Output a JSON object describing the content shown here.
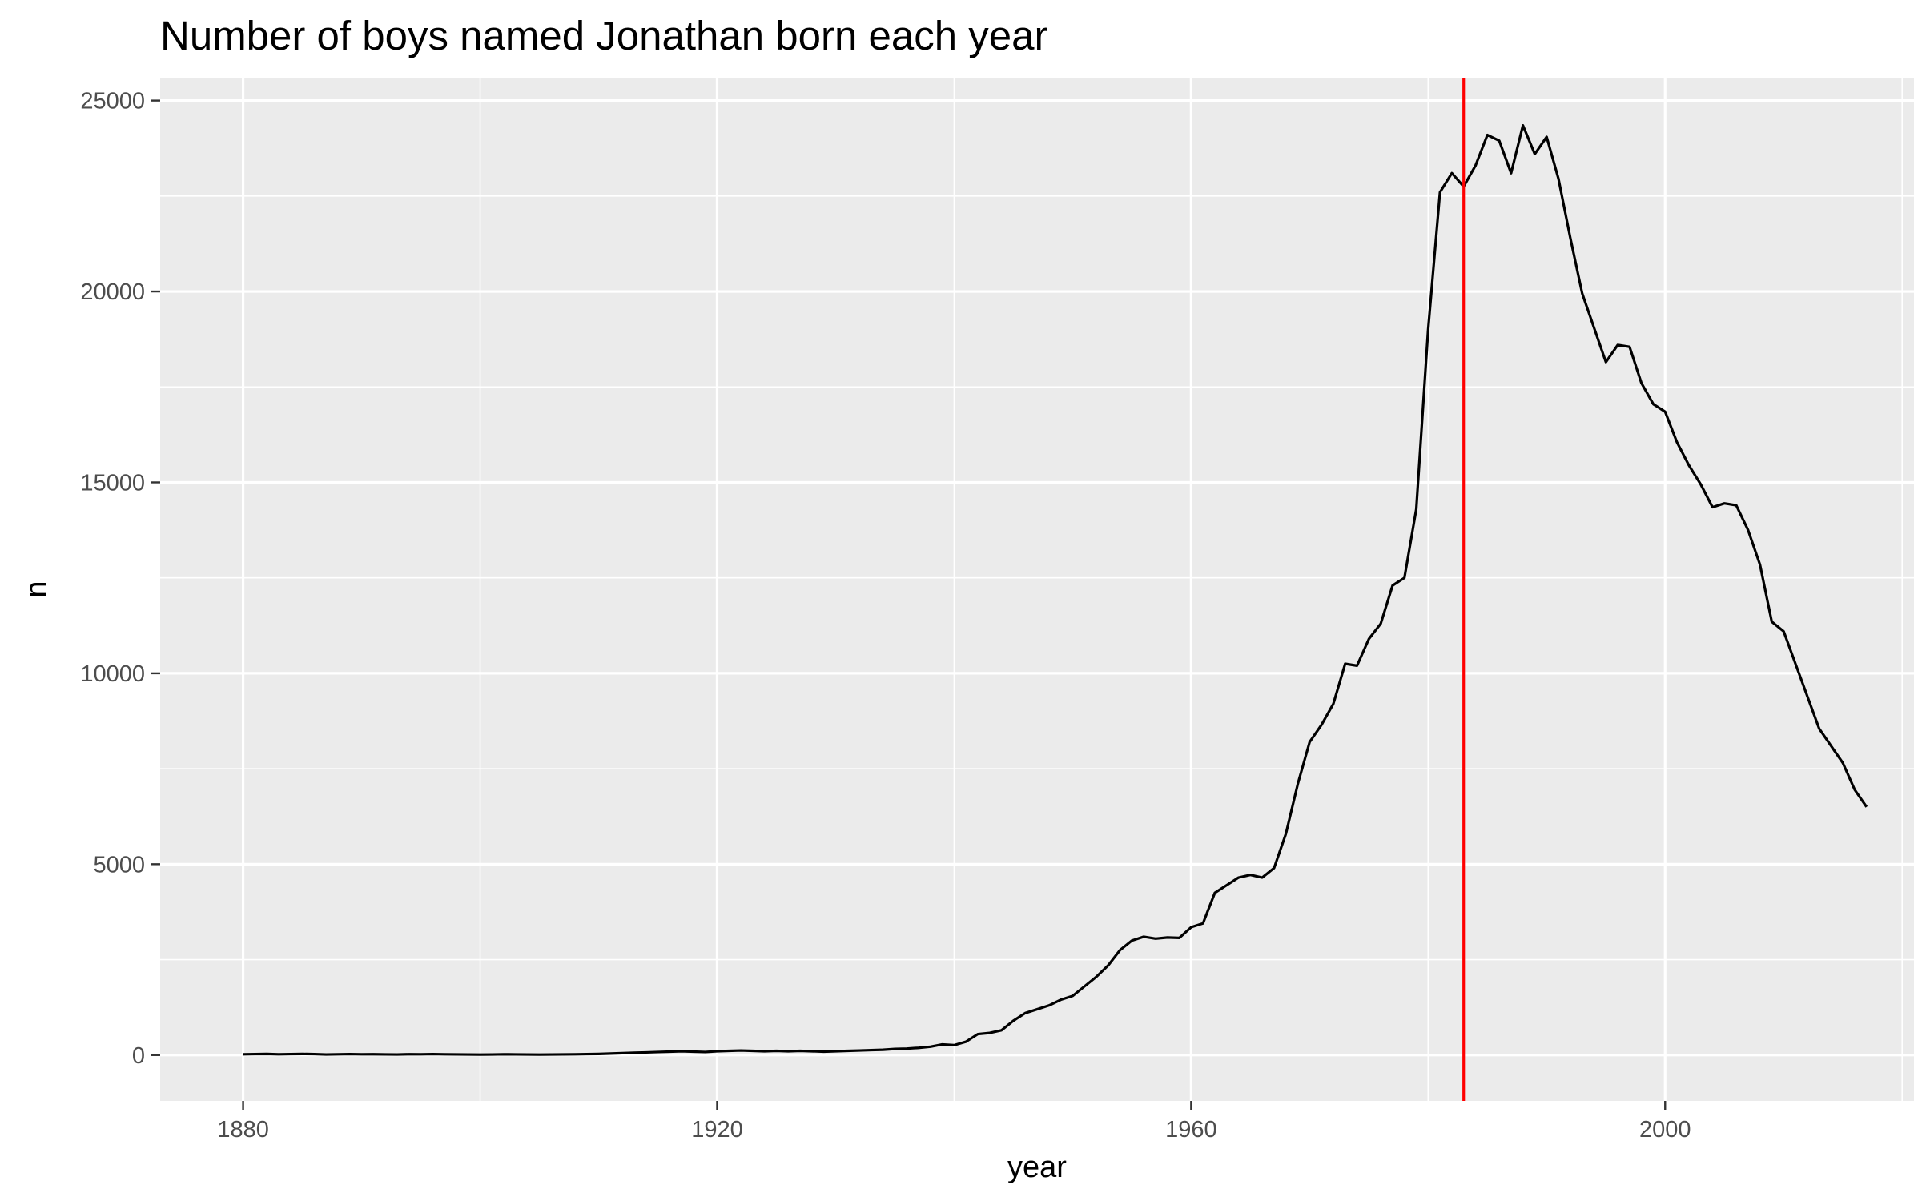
{
  "chart_data": {
    "type": "line",
    "title": "Number of boys named Jonathan born each year",
    "xlabel": "year",
    "ylabel": "n",
    "xlim": [
      1873,
      2021
    ],
    "ylim": [
      -1200,
      25600
    ],
    "x_ticks": [
      1880,
      1920,
      1960,
      2000
    ],
    "x_tick_labels": [
      "1880",
      "1920",
      "1960",
      "2000"
    ],
    "y_ticks": [
      0,
      5000,
      10000,
      15000,
      20000,
      25000
    ],
    "y_tick_labels": [
      "0",
      "5000",
      "10000",
      "15000",
      "20000",
      "25000"
    ],
    "x_minor_ticks": [
      1900,
      1940,
      1980,
      2020
    ],
    "y_minor_ticks": [
      2500,
      7500,
      12500,
      17500,
      22500
    ],
    "grid": true,
    "background": "#ebebeb",
    "line_color": "#000000",
    "vline": {
      "x": 1983,
      "color": "#ff0000"
    },
    "series": [
      {
        "x": [
          1880,
          1881,
          1882,
          1883,
          1884,
          1885,
          1886,
          1887,
          1888,
          1889,
          1890,
          1891,
          1892,
          1893,
          1894,
          1895,
          1896,
          1897,
          1898,
          1899,
          1900,
          1901,
          1902,
          1903,
          1904,
          1905,
          1906,
          1907,
          1908,
          1909,
          1910,
          1911,
          1912,
          1913,
          1914,
          1915,
          1916,
          1917,
          1918,
          1919,
          1920,
          1921,
          1922,
          1923,
          1924,
          1925,
          1926,
          1927,
          1928,
          1929,
          1930,
          1931,
          1932,
          1933,
          1934,
          1935,
          1936,
          1937,
          1938,
          1939,
          1940,
          1941,
          1942,
          1943,
          1944,
          1945,
          1946,
          1947,
          1948,
          1949,
          1950,
          1951,
          1952,
          1953,
          1954,
          1955,
          1956,
          1957,
          1958,
          1959,
          1960,
          1961,
          1962,
          1963,
          1964,
          1965,
          1966,
          1967,
          1968,
          1969,
          1970,
          1971,
          1972,
          1973,
          1974,
          1975,
          1976,
          1977,
          1978,
          1979,
          1980,
          1981,
          1982,
          1983,
          1984,
          1985,
          1986,
          1987,
          1988,
          1989,
          1990,
          1991,
          1992,
          1993,
          1994,
          1995,
          1996,
          1997,
          1998,
          1999,
          2000,
          2001,
          2002,
          2003,
          2004,
          2005,
          2006,
          2007,
          2008,
          2009,
          2010,
          2011,
          2012,
          2013,
          2014,
          2015,
          2016,
          2017
        ],
        "values": [
          20,
          25,
          30,
          20,
          25,
          30,
          25,
          15,
          20,
          25,
          20,
          22,
          18,
          15,
          22,
          20,
          25,
          20,
          18,
          15,
          12,
          15,
          20,
          18,
          15,
          12,
          15,
          18,
          20,
          25,
          30,
          40,
          50,
          60,
          70,
          80,
          90,
          100,
          90,
          80,
          100,
          110,
          120,
          110,
          100,
          110,
          100,
          110,
          100,
          90,
          100,
          110,
          120,
          130,
          140,
          160,
          170,
          190,
          220,
          280,
          260,
          350,
          550,
          580,
          650,
          900,
          1100,
          1200,
          1300,
          1450,
          1550,
          1800,
          2050,
          2350,
          2750,
          3000,
          3100,
          3050,
          3080,
          3070,
          3350,
          3450,
          4250,
          4450,
          4650,
          4720,
          4650,
          4900,
          5800,
          7100,
          8200,
          8650,
          9200,
          10250,
          10200,
          10900,
          11300,
          12300,
          12500,
          14300,
          19000,
          22600,
          23100,
          22750,
          23300,
          24100,
          23950,
          23100,
          24350,
          23600,
          24050,
          22950,
          21400,
          19950,
          19050,
          18150,
          18600,
          18550,
          17600,
          17050,
          16850,
          16050,
          15450,
          14950,
          14350,
          14450,
          14400,
          13750,
          12850,
          11350,
          11100,
          10250,
          9400,
          8550,
          8100,
          7650,
          6950,
          6500
        ]
      }
    ]
  }
}
